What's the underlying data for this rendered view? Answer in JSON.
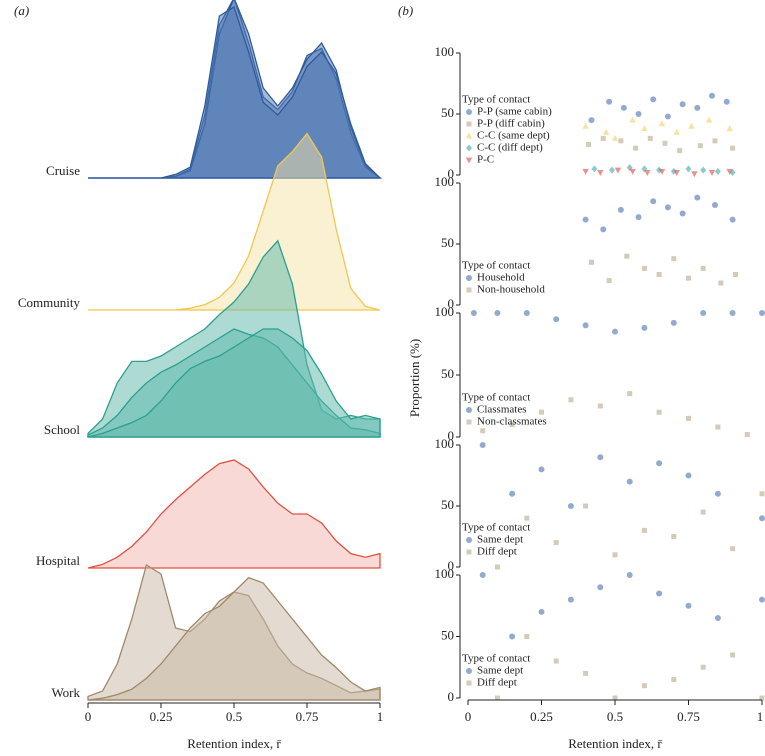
{
  "chart_data": [
    {
      "type": "ridge",
      "label": "(a)",
      "xlabel": "Retention index, r̄",
      "xlim": [
        0,
        1
      ],
      "xticks": [
        0,
        0.25,
        0.5,
        0.75,
        1
      ],
      "x": [
        0,
        0.05,
        0.1,
        0.15,
        0.2,
        0.25,
        0.3,
        0.35,
        0.4,
        0.45,
        0.5,
        0.55,
        0.6,
        0.65,
        0.7,
        0.75,
        0.8,
        0.85,
        0.9,
        0.95,
        1
      ],
      "groups": [
        {
          "name": "Cruise",
          "color": "#2f5a9a",
          "fill": "#4a74b2",
          "curves": [
            [
              0,
              0,
              0,
              0,
              0,
              0,
              0.01,
              0.05,
              0.35,
              0.85,
              1.0,
              0.75,
              0.45,
              0.38,
              0.48,
              0.68,
              0.72,
              0.55,
              0.25,
              0.06,
              0
            ],
            [
              0,
              0,
              0,
              0,
              0,
              0,
              0.01,
              0.04,
              0.3,
              0.8,
              1.0,
              0.8,
              0.5,
              0.4,
              0.5,
              0.66,
              0.75,
              0.6,
              0.28,
              0.07,
              0
            ],
            [
              0,
              0,
              0,
              0,
              0,
              0,
              0.02,
              0.06,
              0.4,
              0.9,
              0.95,
              0.7,
              0.42,
              0.35,
              0.45,
              0.62,
              0.7,
              0.58,
              0.3,
              0.08,
              0
            ]
          ]
        },
        {
          "name": "Community",
          "color": "#f0c850",
          "fill": "#f6e2a6",
          "curves": [
            [
              0,
              0,
              0,
              0,
              0,
              0,
              0,
              0.01,
              0.03,
              0.07,
              0.15,
              0.3,
              0.55,
              0.8,
              0.88,
              0.98,
              0.85,
              0.45,
              0.12,
              0.02,
              0
            ]
          ]
        },
        {
          "name": "School",
          "color": "#2aa090",
          "fill": "#5cb8aa",
          "curves": [
            [
              0.02,
              0.1,
              0.3,
              0.42,
              0.42,
              0.45,
              0.5,
              0.55,
              0.6,
              0.68,
              0.75,
              0.85,
              1.0,
              1.09,
              0.85,
              0.4,
              0.15,
              0.1,
              0.12,
              0.1,
              0.1
            ],
            [
              0.01,
              0.05,
              0.12,
              0.22,
              0.3,
              0.36,
              0.4,
              0.45,
              0.5,
              0.55,
              0.6,
              0.57,
              0.55,
              0.5,
              0.4,
              0.3,
              0.2,
              0.12,
              0.05,
              0.04,
              0.02
            ],
            [
              0,
              0.02,
              0.05,
              0.08,
              0.12,
              0.2,
              0.3,
              0.38,
              0.42,
              0.45,
              0.5,
              0.55,
              0.6,
              0.6,
              0.55,
              0.48,
              0.35,
              0.2,
              0.1,
              0.12,
              0.1
            ]
          ]
        },
        {
          "name": "Hospital",
          "color": "#e05040",
          "fill": "#f4b4ac",
          "curves": [
            [
              0,
              0.02,
              0.06,
              0.12,
              0.2,
              0.3,
              0.38,
              0.45,
              0.52,
              0.58,
              0.6,
              0.55,
              0.45,
              0.36,
              0.3,
              0.3,
              0.25,
              0.15,
              0.08,
              0.06,
              0.08
            ]
          ]
        },
        {
          "name": "Work",
          "color": "#a08868",
          "fill": "#c8b8a4",
          "curves": [
            [
              0.02,
              0.05,
              0.2,
              0.45,
              0.75,
              0.7,
              0.4,
              0.38,
              0.45,
              0.55,
              0.6,
              0.58,
              0.45,
              0.3,
              0.2,
              0.15,
              0.12,
              0.08,
              0.04,
              0.05,
              0.06
            ],
            [
              0,
              0.01,
              0.03,
              0.06,
              0.12,
              0.2,
              0.3,
              0.4,
              0.48,
              0.52,
              0.6,
              0.68,
              0.65,
              0.55,
              0.45,
              0.35,
              0.25,
              0.18,
              0.1,
              0.05,
              0.07
            ]
          ]
        }
      ]
    },
    {
      "type": "scatter",
      "label": "(b)",
      "xlabel": "Retention index, r̄",
      "ylabel": "Proportion (%)",
      "legend_title": "Type of contact",
      "xlim": [
        0,
        1
      ],
      "xticks": [
        0,
        0.25,
        0.5,
        0.75,
        1
      ],
      "ylim": [
        0,
        100
      ],
      "yticks": [
        0,
        50,
        100
      ],
      "panels": [
        {
          "series": [
            {
              "name": "P-P (same cabin)",
              "color": "#3a64a8",
              "marker": "circle",
              "x": [
                0.42,
                0.48,
                0.53,
                0.58,
                0.63,
                0.68,
                0.73,
                0.78,
                0.83,
                0.88
              ],
              "y": [
                45,
                60,
                55,
                50,
                62,
                48,
                58,
                55,
                65,
                60
              ]
            },
            {
              "name": "P-P (diff cabin)",
              "color": "#b8a68c",
              "marker": "square",
              "x": [
                0.41,
                0.46,
                0.52,
                0.57,
                0.62,
                0.67,
                0.72,
                0.79,
                0.84,
                0.9
              ],
              "y": [
                25,
                30,
                28,
                22,
                30,
                26,
                20,
                24,
                28,
                22
              ]
            },
            {
              "name": "C-C (same dept)",
              "color": "#f0d060",
              "marker": "triangle",
              "x": [
                0.4,
                0.47,
                0.5,
                0.56,
                0.6,
                0.66,
                0.71,
                0.76,
                0.82,
                0.89
              ],
              "y": [
                40,
                35,
                30,
                45,
                38,
                42,
                35,
                40,
                45,
                38
              ]
            },
            {
              "name": "C-C (diff dept)",
              "color": "#40a8a0",
              "marker": "diamond",
              "x": [
                0.43,
                0.49,
                0.55,
                0.6,
                0.65,
                0.7,
                0.75,
                0.8,
                0.85,
                0.9
              ],
              "y": [
                5,
                4,
                6,
                5,
                4,
                3,
                5,
                4,
                3,
                2
              ]
            },
            {
              "name": "P-C",
              "color": "#e04848",
              "marker": "triangle-down",
              "x": [
                0.4,
                0.45,
                0.51,
                0.56,
                0.61,
                0.66,
                0.71,
                0.77,
                0.83,
                0.89
              ],
              "y": [
                3,
                2,
                4,
                3,
                2,
                3,
                2,
                1,
                2,
                3
              ]
            }
          ]
        },
        {
          "series": [
            {
              "name": "Household",
              "color": "#3a64a8",
              "marker": "circle",
              "x": [
                0.4,
                0.46,
                0.52,
                0.58,
                0.63,
                0.68,
                0.73,
                0.78,
                0.84,
                0.9
              ],
              "y": [
                70,
                62,
                78,
                72,
                85,
                80,
                75,
                88,
                82,
                70
              ]
            },
            {
              "name": "Non-household",
              "color": "#b8a68c",
              "marker": "square",
              "x": [
                0.42,
                0.48,
                0.54,
                0.6,
                0.65,
                0.7,
                0.75,
                0.8,
                0.86,
                0.91
              ],
              "y": [
                35,
                20,
                40,
                30,
                25,
                38,
                22,
                30,
                18,
                25
              ]
            }
          ]
        },
        {
          "series": [
            {
              "name": "Classmates",
              "color": "#3a64a8",
              "marker": "circle",
              "x": [
                0.02,
                0.1,
                0.2,
                0.3,
                0.4,
                0.5,
                0.6,
                0.7,
                0.8,
                0.9,
                1
              ],
              "y": [
                100,
                100,
                100,
                95,
                90,
                85,
                88,
                92,
                100,
                100,
                100
              ]
            },
            {
              "name": "Non-classmates",
              "color": "#b8a68c",
              "marker": "square",
              "x": [
                0.05,
                0.15,
                0.25,
                0.35,
                0.45,
                0.55,
                0.65,
                0.75,
                0.85,
                0.95
              ],
              "y": [
                5,
                10,
                20,
                30,
                25,
                35,
                20,
                15,
                8,
                2
              ]
            }
          ]
        },
        {
          "series": [
            {
              "name": "Same dept",
              "color": "#3a64a8",
              "marker": "circle",
              "x": [
                0.05,
                0.15,
                0.25,
                0.35,
                0.45,
                0.55,
                0.65,
                0.75,
                0.85,
                1
              ],
              "y": [
                100,
                60,
                80,
                50,
                90,
                70,
                85,
                75,
                60,
                40
              ]
            },
            {
              "name": "Diff dept",
              "color": "#b8a68c",
              "marker": "square",
              "x": [
                0.1,
                0.2,
                0.3,
                0.4,
                0.5,
                0.6,
                0.7,
                0.8,
                0.9,
                1
              ],
              "y": [
                0,
                40,
                20,
                50,
                10,
                30,
                25,
                45,
                15,
                60
              ]
            }
          ]
        },
        {
          "series": [
            {
              "name": "Same dept",
              "color": "#3a64a8",
              "marker": "circle",
              "x": [
                0.05,
                0.15,
                0.25,
                0.35,
                0.45,
                0.55,
                0.65,
                0.75,
                0.85,
                1
              ],
              "y": [
                100,
                50,
                70,
                80,
                90,
                100,
                85,
                75,
                65,
                80
              ]
            },
            {
              "name": "Diff dept",
              "color": "#b8a68c",
              "marker": "square",
              "x": [
                0.1,
                0.2,
                0.3,
                0.4,
                0.5,
                0.6,
                0.7,
                0.8,
                0.9,
                1
              ],
              "y": [
                0,
                50,
                30,
                20,
                0,
                10,
                15,
                25,
                35,
                0
              ]
            }
          ]
        }
      ]
    }
  ]
}
